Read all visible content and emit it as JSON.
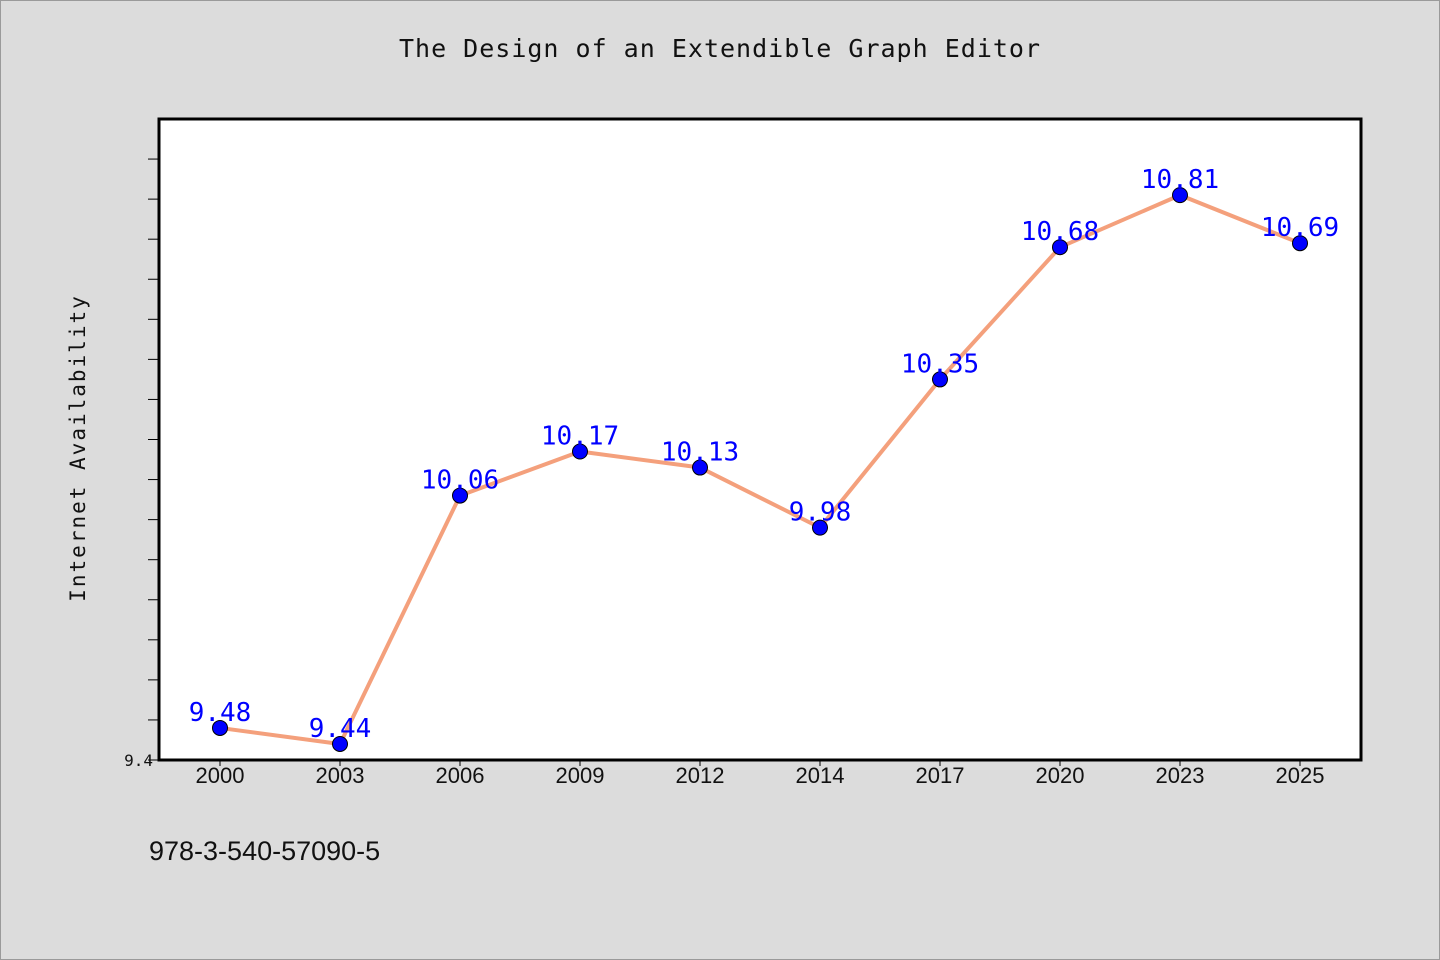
{
  "chart_data": {
    "type": "line",
    "title": "The Design of an Extendible Graph Editor",
    "xlabel": "",
    "ylabel": "Internet Availability",
    "categories": [
      "2000",
      "2003",
      "2006",
      "2009",
      "2012",
      "2014",
      "2017",
      "2020",
      "2023",
      "2025"
    ],
    "series": [
      {
        "values": [
          9.48,
          9.44,
          10.06,
          10.17,
          10.13,
          9.98,
          10.35,
          10.68,
          10.81,
          10.69
        ],
        "line_color": "#f4a07c",
        "marker_color": "#0000ff"
      }
    ],
    "ylim": [
      9.4,
      11.0
    ],
    "ytick_labels": [
      "9.4"
    ],
    "data_labels": [
      "9.48",
      "9.44",
      "10.06",
      "10.17",
      "10.13",
      "9.98",
      "10.35",
      "10.68",
      "10.81",
      "10.69"
    ],
    "grid": false,
    "legend": "none"
  },
  "footer": {
    "isbn": "978-3-540-57090-5"
  },
  "colors": {
    "background": "#dcdcdc",
    "plot_background": "#ffffff",
    "line": "#f4a07c",
    "marker": "#0000ff",
    "data_label": "#0000ff"
  }
}
